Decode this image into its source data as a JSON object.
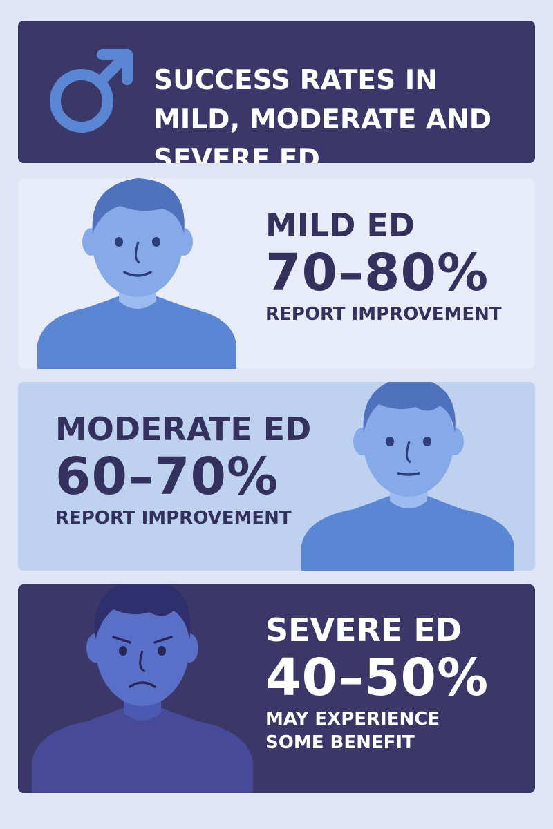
{
  "header": {
    "title": "SUCCESS RATES IN MILD, MODERATE AND SEVERE ED",
    "icon": "male-symbol-icon"
  },
  "sections": [
    {
      "heading": "MILD ED",
      "percentage": "70–80%",
      "note": "REPORT IMPROVEMENT",
      "illustration": "neutral-man-illustration",
      "background": "#e7ecf8"
    },
    {
      "heading": "MODERATE ED",
      "percentage": "60–70%",
      "note": "REPORT IMPROVEMENT",
      "illustration": "neutral-man-illustration",
      "background": "#bed2ef"
    },
    {
      "heading": "SEVERE ED",
      "percentage": "40–50%",
      "note_line1": "MAY EXPERIENCE",
      "note_line2": "SOME BENEFIT",
      "illustration": "sad-man-illustration",
      "background": "#3b3869"
    }
  ],
  "colors": {
    "navy": "#3b3869",
    "accent_blue": "#5b86d4",
    "page_background": "#dfe5f6"
  }
}
